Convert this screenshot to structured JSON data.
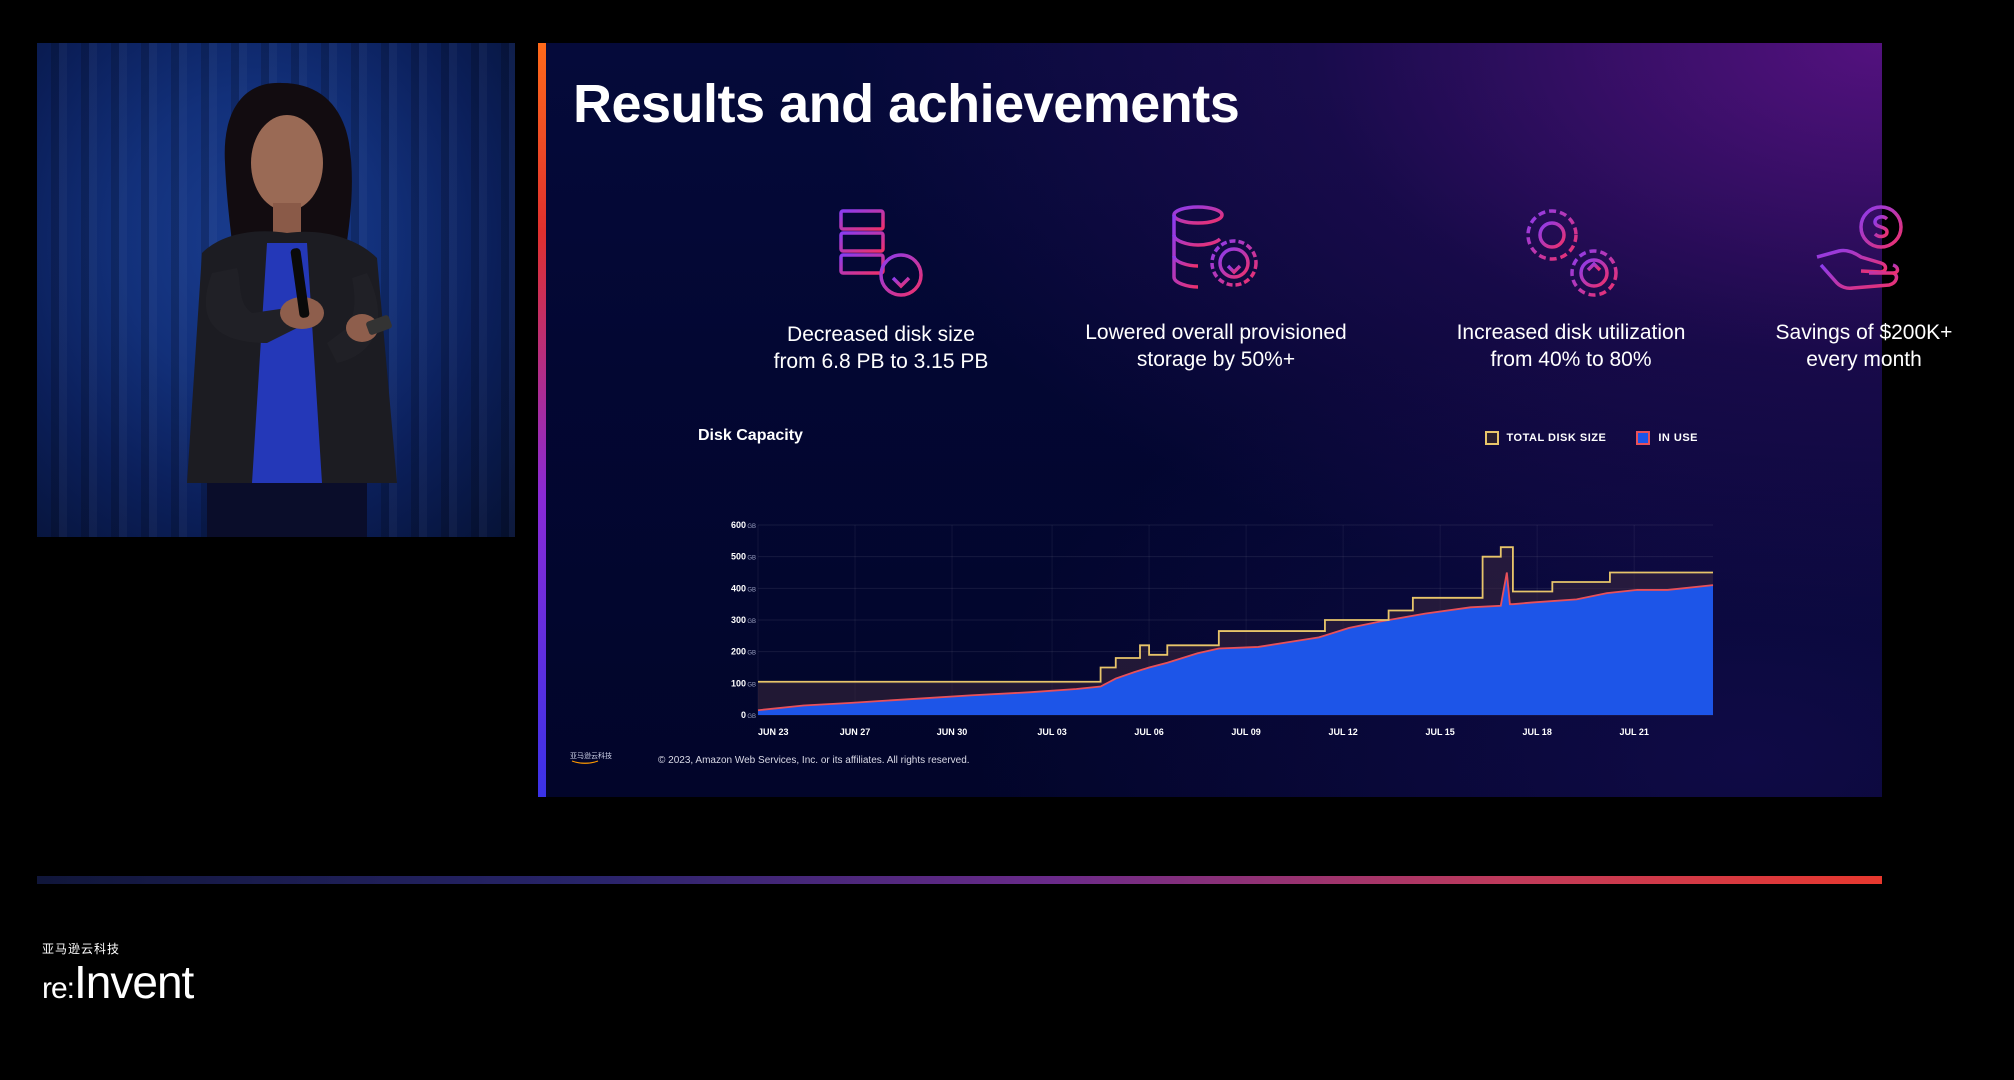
{
  "slide": {
    "title": "Results and achievements",
    "stats": [
      {
        "label": "Decreased disk size\nfrom 6.8 PB to 3.15 PB",
        "icon": "server-download-icon"
      },
      {
        "label": "Lowered overall provisioned\nstorage by 50%+",
        "icon": "database-gear-download-icon"
      },
      {
        "label": "Increased disk utilization\nfrom 40% to 80%",
        "icon": "gears-upload-icon"
      },
      {
        "label": "Savings of $200K+\nevery month",
        "icon": "hand-dollar-icon"
      }
    ],
    "copyright": "© 2023, Amazon Web Services, Inc. or its affiliates. All rights reserved.",
    "footer_logo_text": "亚马逊云科技"
  },
  "chart_data": {
    "type": "area",
    "title": "Disk Capacity",
    "xlabel": "",
    "ylabel": "",
    "ylim": [
      0,
      600
    ],
    "yticks": [
      0,
      100,
      200,
      300,
      400,
      500,
      600
    ],
    "y_unit": "GB",
    "xticks": [
      "JUN 23",
      "JUN 27",
      "JUN 30",
      "JUL 03",
      "JUL 06",
      "JUL 09",
      "JUL 12",
      "JUL 15",
      "JUL 18",
      "JUL 21"
    ],
    "x_range": [
      0,
      31.5
    ],
    "legend_position": "top-right",
    "grid": true,
    "series": [
      {
        "name": "TOTAL DISK SIZE",
        "style": "step-line",
        "color": "#e8c56a",
        "x": [
          0,
          11.3,
          11.3,
          11.8,
          11.8,
          12.6,
          12.6,
          12.9,
          12.9,
          13.5,
          13.5,
          15.2,
          15.2,
          18.7,
          18.7,
          20.8,
          20.8,
          21.6,
          21.6,
          23.9,
          23.9,
          24.5,
          24.5,
          24.9,
          24.9,
          26.2,
          26.2,
          28.1,
          28.1,
          29.9,
          29.9,
          31.5
        ],
        "values": [
          105,
          105,
          150,
          150,
          180,
          180,
          220,
          220,
          190,
          190,
          220,
          220,
          265,
          265,
          300,
          300,
          330,
          330,
          370,
          370,
          500,
          500,
          530,
          530,
          390,
          390,
          420,
          420,
          450,
          450,
          450,
          450
        ]
      },
      {
        "name": "IN USE",
        "style": "area",
        "color": "#1d55e8",
        "line_color": "#e8505a",
        "x": [
          0,
          1.5,
          3,
          5,
          7,
          9,
          10.5,
          11.3,
          11.8,
          12.4,
          12.9,
          13.5,
          14.5,
          15.2,
          16.5,
          17.5,
          18.5,
          19.5,
          20.5,
          22,
          23.5,
          24.5,
          24.7,
          24.8,
          24.9,
          25.5,
          27,
          28,
          29,
          30,
          31.5
        ],
        "values": [
          15,
          30,
          38,
          50,
          62,
          72,
          82,
          90,
          115,
          135,
          150,
          165,
          195,
          210,
          215,
          230,
          245,
          275,
          295,
          320,
          340,
          345,
          450,
          350,
          350,
          355,
          365,
          385,
          395,
          395,
          410
        ]
      }
    ]
  }
}
